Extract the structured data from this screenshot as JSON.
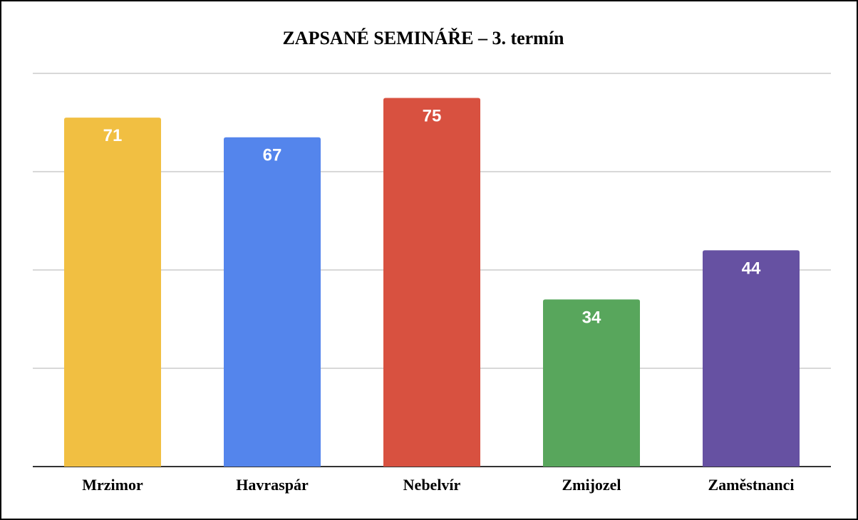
{
  "chart_data": {
    "type": "bar",
    "title": "ZAPSANÉ SEMINÁŘE – 3. termín",
    "xlabel": "",
    "ylabel": "",
    "categories": [
      "Mrzimor",
      "Havraspár",
      "Nebelvír",
      "Zmijozel",
      "Zaměstnanci"
    ],
    "values": [
      71,
      67,
      75,
      34,
      44
    ],
    "colors": [
      "#F1BF42",
      "#5485EC",
      "#D85140",
      "#58A65C",
      "#6651A2"
    ],
    "ylim": [
      0,
      80
    ],
    "gridlines": [
      0,
      20,
      40,
      60,
      80
    ],
    "grid": true,
    "legend": "none",
    "data_labels": true
  }
}
